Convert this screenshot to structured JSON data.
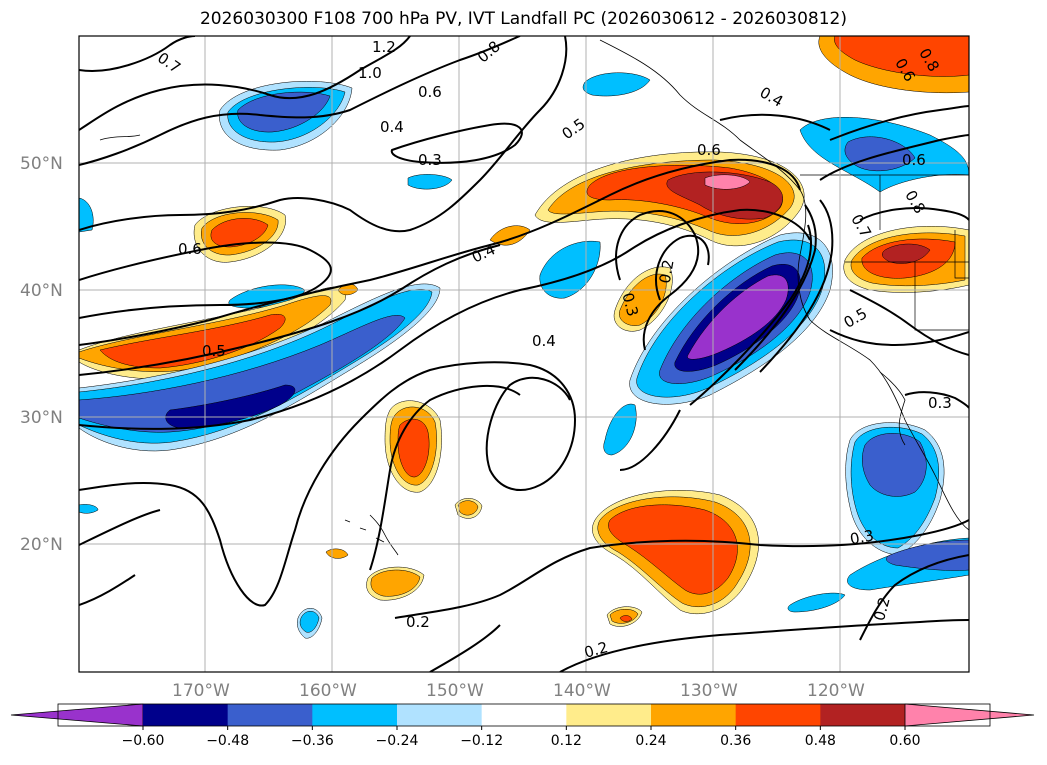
{
  "map": {
    "title": "2026030300 F108 700 hPa PV, IVT Landfall PC (2026030612 - 2026030812)",
    "lat_labels": [
      "50°N",
      "40°N",
      "30°N",
      "20°N"
    ],
    "lon_labels": [
      "170°W",
      "160°W",
      "150°W",
      "140°W",
      "130°W",
      "120°W"
    ],
    "contour_labels": [
      "0.7",
      "1.2",
      "1.0",
      "0.8",
      "0.6",
      "0.4",
      "0.3",
      "0.5",
      "0.6",
      "0.6",
      "0.6",
      "0.4",
      "0.5",
      "0.2",
      "0.3",
      "0.4",
      "0.7",
      "0.8",
      "0.5",
      "0.3",
      "0.3",
      "0.2",
      "0.2",
      "0.2",
      "0.4",
      "0.6",
      "0.8"
    ]
  },
  "colorbar": {
    "ticks": [
      "−0.60",
      "−0.48",
      "−0.36",
      "−0.24",
      "−0.12",
      "0.12",
      "0.24",
      "0.36",
      "0.48",
      "0.60"
    ],
    "colors": [
      "#9932cc",
      "#00008b",
      "#3a5fcd",
      "#00bfff",
      "#b0e2ff",
      "#ffffff",
      "#ffec8b",
      "#ffa500",
      "#ff4500",
      "#b22222",
      "#ff82ab"
    ]
  }
}
